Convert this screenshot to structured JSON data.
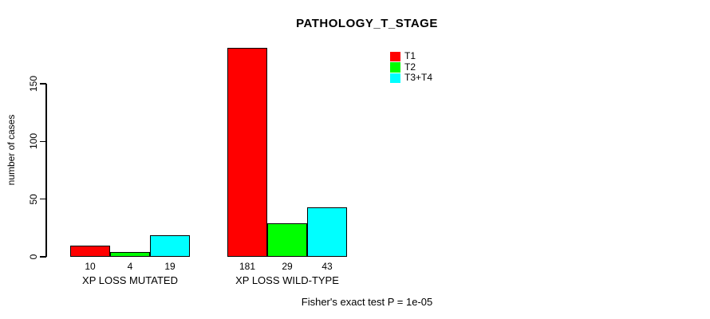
{
  "chart_data": {
    "type": "bar",
    "title": "PATHOLOGY_T_STAGE",
    "ylabel": "number of cases",
    "xlabel": "",
    "yticks": [
      0,
      50,
      100,
      150
    ],
    "ylim": [
      0,
      150
    ],
    "grid": false,
    "legend_position": "top-right",
    "categories": [
      "XP LOSS MUTATED",
      "XP LOSS WILD-TYPE"
    ],
    "series": [
      {
        "name": "T1",
        "color": "#FF0000",
        "values": [
          10,
          181
        ]
      },
      {
        "name": "T2",
        "color": "#00FF00",
        "values": [
          4,
          29
        ]
      },
      {
        "name": "T3+T4",
        "color": "#00FFFF",
        "values": [
          19,
          43
        ]
      }
    ],
    "bar_value_labels": [
      [
        "10",
        "4",
        "19"
      ],
      [
        "181",
        "29",
        "43"
      ]
    ],
    "footnote": "Fisher's exact test P = 1e-05"
  }
}
